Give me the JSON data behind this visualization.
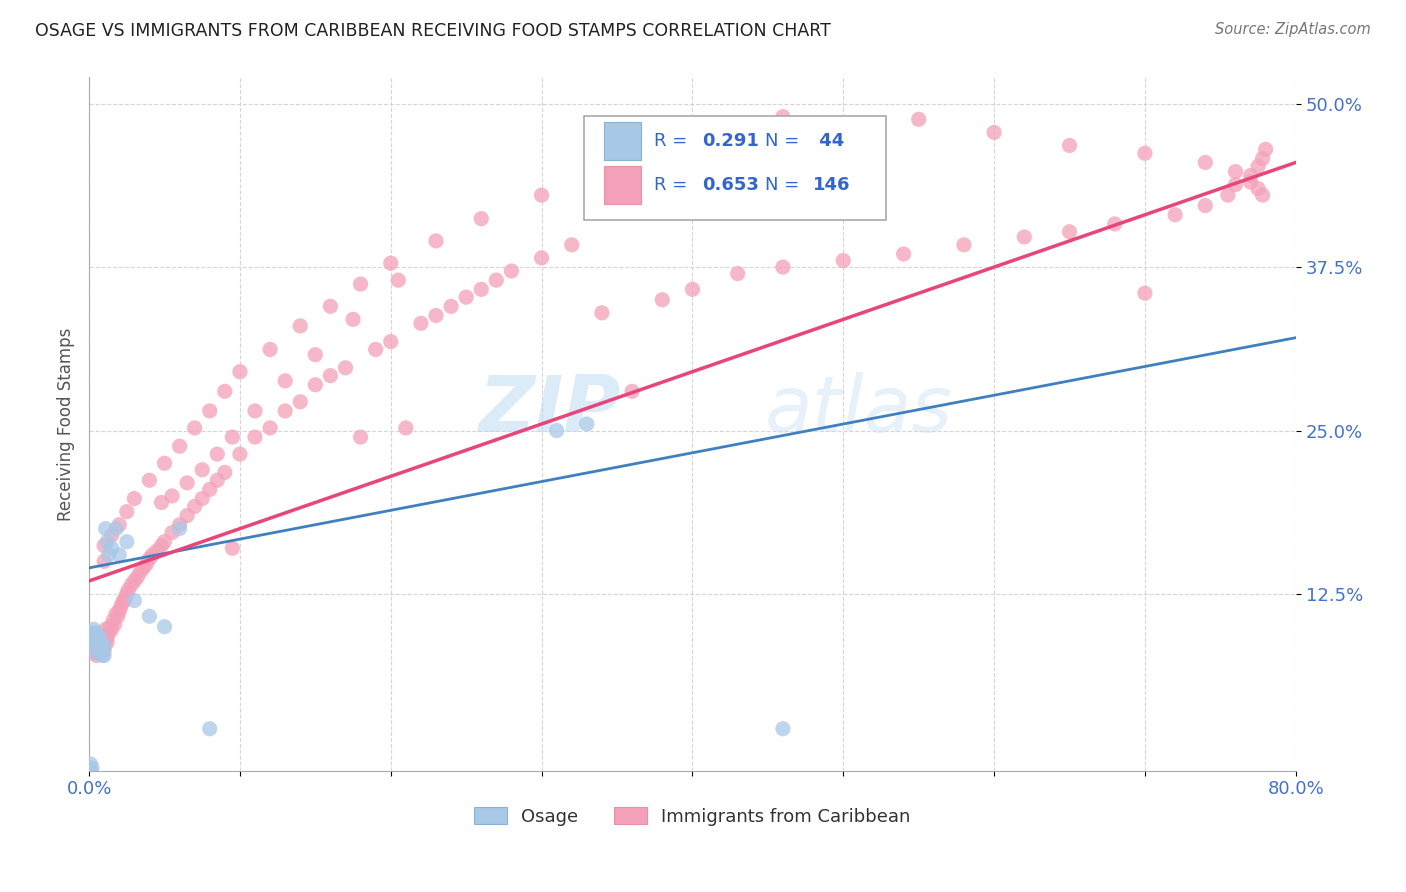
{
  "title": "OSAGE VS IMMIGRANTS FROM CARIBBEAN RECEIVING FOOD STAMPS CORRELATION CHART",
  "source": "Source: ZipAtlas.com",
  "ylabel": "Receiving Food Stamps",
  "xlim": [
    0.0,
    0.8
  ],
  "ylim": [
    -0.01,
    0.52
  ],
  "ytick_positions": [
    0.125,
    0.25,
    0.375,
    0.5
  ],
  "ytick_labels": [
    "12.5%",
    "25.0%",
    "37.5%",
    "50.0%"
  ],
  "blue_color": "#a8c8e8",
  "pink_color": "#f4a0b8",
  "blue_line_color": "#4080c0",
  "pink_line_color": "#e8457a",
  "watermark_text": "ZIP",
  "watermark_text2": "atlas",
  "legend_r1": "0.291",
  "legend_n1": "44",
  "legend_r2": "0.653",
  "legend_n2": "146",
  "osage_x": [
    0.001,
    0.001,
    0.001,
    0.002,
    0.002,
    0.002,
    0.002,
    0.003,
    0.003,
    0.003,
    0.003,
    0.004,
    0.004,
    0.004,
    0.005,
    0.005,
    0.005,
    0.006,
    0.006,
    0.006,
    0.007,
    0.007,
    0.007,
    0.008,
    0.008,
    0.009,
    0.009,
    0.01,
    0.01,
    0.011,
    0.012,
    0.013,
    0.015,
    0.018,
    0.02,
    0.025,
    0.03,
    0.04,
    0.05,
    0.06,
    0.08,
    0.31,
    0.33,
    0.46
  ],
  "osage_y": [
    -0.005,
    -0.01,
    -0.012,
    0.095,
    0.09,
    0.092,
    -0.008,
    0.088,
    0.092,
    0.095,
    0.098,
    0.085,
    0.09,
    0.095,
    0.08,
    0.085,
    0.095,
    0.085,
    0.088,
    0.092,
    0.082,
    0.088,
    0.092,
    0.08,
    0.085,
    0.078,
    0.082,
    0.078,
    0.085,
    0.175,
    0.165,
    0.155,
    0.16,
    0.175,
    0.155,
    0.165,
    0.12,
    0.108,
    0.1,
    0.175,
    0.022,
    0.25,
    0.255,
    0.022
  ],
  "carib_x": [
    0.002,
    0.003,
    0.003,
    0.004,
    0.004,
    0.004,
    0.005,
    0.005,
    0.005,
    0.006,
    0.006,
    0.007,
    0.007,
    0.008,
    0.008,
    0.009,
    0.009,
    0.01,
    0.01,
    0.011,
    0.011,
    0.012,
    0.012,
    0.013,
    0.014,
    0.015,
    0.016,
    0.017,
    0.018,
    0.019,
    0.02,
    0.021,
    0.022,
    0.023,
    0.024,
    0.025,
    0.026,
    0.028,
    0.03,
    0.032,
    0.034,
    0.036,
    0.038,
    0.04,
    0.042,
    0.045,
    0.048,
    0.05,
    0.055,
    0.06,
    0.065,
    0.07,
    0.075,
    0.08,
    0.085,
    0.09,
    0.095,
    0.1,
    0.11,
    0.12,
    0.13,
    0.14,
    0.15,
    0.16,
    0.17,
    0.18,
    0.19,
    0.2,
    0.21,
    0.22,
    0.23,
    0.24,
    0.25,
    0.26,
    0.27,
    0.28,
    0.3,
    0.32,
    0.34,
    0.36,
    0.38,
    0.4,
    0.43,
    0.46,
    0.5,
    0.54,
    0.58,
    0.62,
    0.65,
    0.68,
    0.7,
    0.72,
    0.74,
    0.755,
    0.76,
    0.77,
    0.775,
    0.778,
    0.78,
    0.01,
    0.01,
    0.015,
    0.02,
    0.025,
    0.03,
    0.04,
    0.05,
    0.06,
    0.07,
    0.08,
    0.09,
    0.1,
    0.12,
    0.14,
    0.16,
    0.18,
    0.2,
    0.23,
    0.26,
    0.3,
    0.34,
    0.38,
    0.42,
    0.46,
    0.5,
    0.55,
    0.6,
    0.65,
    0.7,
    0.74,
    0.76,
    0.77,
    0.775,
    0.778,
    0.048,
    0.055,
    0.065,
    0.075,
    0.085,
    0.095,
    0.11,
    0.13,
    0.15,
    0.175,
    0.205
  ],
  "carib_y": [
    0.095,
    0.085,
    0.095,
    0.08,
    0.088,
    0.092,
    0.078,
    0.085,
    0.092,
    0.082,
    0.09,
    0.08,
    0.088,
    0.082,
    0.09,
    0.08,
    0.088,
    0.082,
    0.088,
    0.092,
    0.098,
    0.088,
    0.092,
    0.095,
    0.1,
    0.098,
    0.105,
    0.102,
    0.11,
    0.108,
    0.112,
    0.115,
    0.118,
    0.12,
    0.122,
    0.125,
    0.128,
    0.132,
    0.135,
    0.138,
    0.142,
    0.145,
    0.148,
    0.152,
    0.155,
    0.158,
    0.162,
    0.165,
    0.172,
    0.178,
    0.185,
    0.192,
    0.198,
    0.205,
    0.212,
    0.218,
    0.16,
    0.232,
    0.245,
    0.252,
    0.265,
    0.272,
    0.285,
    0.292,
    0.298,
    0.245,
    0.312,
    0.318,
    0.252,
    0.332,
    0.338,
    0.345,
    0.352,
    0.358,
    0.365,
    0.372,
    0.382,
    0.392,
    0.34,
    0.28,
    0.35,
    0.358,
    0.37,
    0.375,
    0.38,
    0.385,
    0.392,
    0.398,
    0.402,
    0.408,
    0.355,
    0.415,
    0.422,
    0.43,
    0.438,
    0.445,
    0.452,
    0.458,
    0.465,
    0.15,
    0.162,
    0.17,
    0.178,
    0.188,
    0.198,
    0.212,
    0.225,
    0.238,
    0.252,
    0.265,
    0.28,
    0.295,
    0.312,
    0.33,
    0.345,
    0.362,
    0.378,
    0.395,
    0.412,
    0.43,
    0.448,
    0.462,
    0.478,
    0.49,
    0.48,
    0.488,
    0.478,
    0.468,
    0.462,
    0.455,
    0.448,
    0.44,
    0.435,
    0.43,
    0.195,
    0.2,
    0.21,
    0.22,
    0.232,
    0.245,
    0.265,
    0.288,
    0.308,
    0.335,
    0.365
  ]
}
